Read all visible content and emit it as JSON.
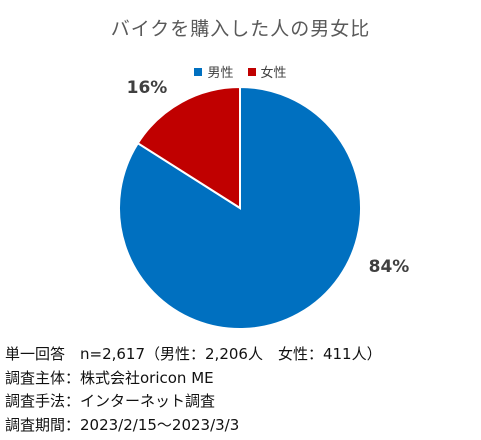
{
  "chart_data": {
    "type": "pie",
    "title": "バイクを購入した人の男女比",
    "categories": [
      "男性",
      "女性"
    ],
    "values": [
      84,
      16
    ],
    "value_labels": [
      "84%",
      "16%"
    ],
    "colors": [
      "#0070C0",
      "#C00000"
    ],
    "legend_position": "top",
    "start_angle": "top, clockwise"
  },
  "footnotes": {
    "line1": "単一回答　n=2,617（男性：2,206人　女性：411人）",
    "line2": "調査主体：株式会社oricon ME",
    "line3": "調査手法：インターネット調査",
    "line4": "調査期間：2023/2/15～2023/3/3"
  }
}
